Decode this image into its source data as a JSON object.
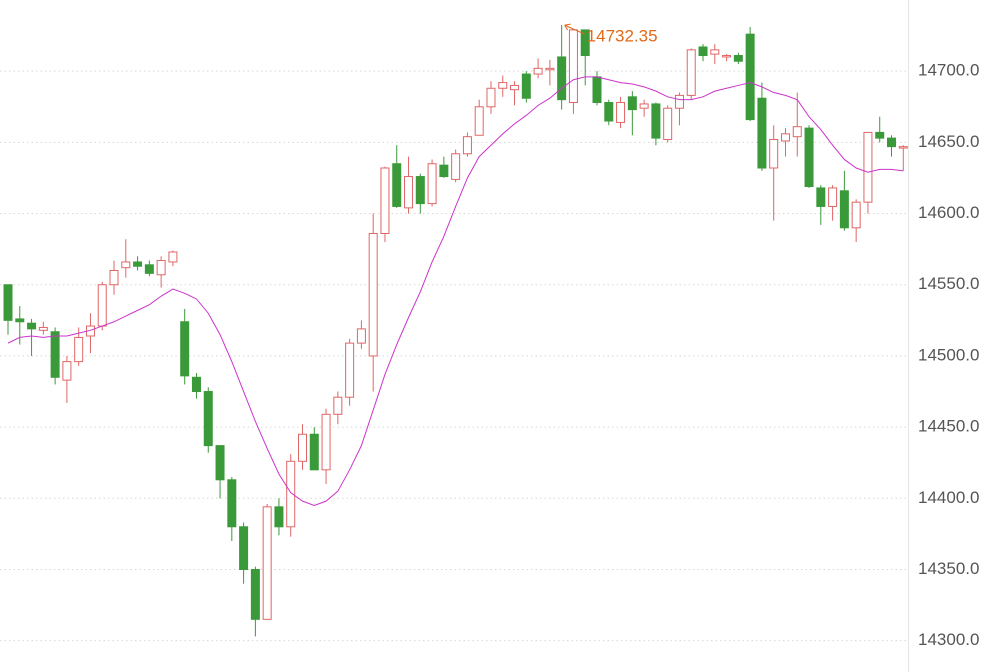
{
  "chart_data": {
    "type": "candlestick",
    "up_color": "#e06666",
    "down_color": "#3a9a3a",
    "open": [
      14550,
      14526,
      14523,
      14518,
      14517,
      14483,
      14496,
      14514,
      14521,
      14550,
      14562,
      14566,
      14564,
      14557,
      14566,
      14524,
      14485,
      14475,
      14437,
      14413,
      14380,
      14350,
      14315,
      14394,
      14380,
      14426,
      14445,
      14420,
      14459,
      14471,
      14509,
      14500,
      14586,
      14635,
      14604,
      14626,
      14607,
      14634,
      14624,
      14642,
      14655,
      14675,
      14688,
      14687,
      14698,
      14698,
      14701,
      14710,
      14678,
      14729,
      14696,
      14678,
      14664,
      14682,
      14674,
      14677,
      14652,
      14674,
      14683,
      14717,
      14712,
      14710,
      14711,
      14726,
      14681,
      14632,
      14651,
      14654,
      14660,
      14618,
      14605,
      14616,
      14590,
      14608,
      14657,
      14653,
      14646
    ],
    "high": [
      14550,
      14535,
      14526,
      14524,
      14520,
      14500,
      14520,
      14530,
      14552,
      14567,
      14582,
      14570,
      14567,
      14570,
      14574,
      14533,
      14488,
      14478,
      14437,
      14415,
      14383,
      14352,
      14396,
      14400,
      14431,
      14452,
      14450,
      14463,
      14475,
      14512,
      14525,
      14600,
      14633,
      14648,
      14640,
      14628,
      14638,
      14640,
      14645,
      14657,
      14680,
      14693,
      14697,
      14693,
      14700,
      14709,
      14708,
      14732.35,
      14728,
      14729,
      14700,
      14680,
      14682,
      14686,
      14680,
      14678,
      14676,
      14685,
      14716,
      14719,
      14719,
      14712,
      14713,
      14731,
      14692,
      14662,
      14660,
      14685,
      14662,
      14620,
      14620,
      14630,
      14610,
      14657,
      14668,
      14655,
      14648
    ],
    "low": [
      14515,
      14508,
      14500,
      14515,
      14480,
      14467,
      14493,
      14502,
      14518,
      14543,
      14555,
      14560,
      14556,
      14548,
      14563,
      14480,
      14470,
      14432,
      14400,
      14370,
      14340,
      14303,
      14315,
      14374,
      14373,
      14420,
      14420,
      14410,
      14452,
      14465,
      14505,
      14475,
      14580,
      14604,
      14600,
      14600,
      14605,
      14625,
      14622,
      14640,
      14655,
      14670,
      14682,
      14676,
      14678,
      14695,
      14690,
      14673,
      14670,
      14690,
      14676,
      14662,
      14660,
      14655,
      14668,
      14648,
      14650,
      14662,
      14680,
      14707,
      14705,
      14707,
      14705,
      14665,
      14630,
      14595,
      14640,
      14640,
      14618,
      14592,
      14595,
      14588,
      14580,
      14600,
      14650,
      14640,
      14630
    ],
    "close": [
      14525,
      14524,
      14519,
      14520,
      14485,
      14496,
      14513,
      14521,
      14550,
      14560,
      14566,
      14563,
      14558,
      14567,
      14573,
      14486,
      14475,
      14437,
      14413,
      14380,
      14350,
      14315,
      14394,
      14380,
      14426,
      14445,
      14420,
      14459,
      14471,
      14509,
      14519,
      14586,
      14632,
      14605,
      14626,
      14607,
      14635,
      14626,
      14642,
      14654,
      14675,
      14688,
      14692,
      14690,
      14681,
      14702,
      14702,
      14680,
      14729,
      14711,
      14678,
      14665,
      14678,
      14673,
      14677,
      14653,
      14674,
      14683,
      14715,
      14711,
      14715,
      14711,
      14707,
      14666,
      14632,
      14652,
      14656,
      14661,
      14619,
      14605,
      14618,
      14590,
      14608,
      14657,
      14653,
      14647,
      14647
    ],
    "ma": {
      "color": "#cc33cc",
      "values": [
        14509,
        14513,
        14514,
        14513,
        14514,
        14514,
        14516,
        14518,
        14521,
        14524,
        14528,
        14532,
        14536,
        14542,
        14547,
        14544,
        14540,
        14530,
        14515,
        14496,
        14475,
        14454,
        14435,
        14417,
        14404,
        14398,
        14395,
        14398,
        14405,
        14420,
        14437,
        14462,
        14487,
        14508,
        14527,
        14545,
        14566,
        14584,
        14605,
        14625,
        14640,
        14648,
        14656,
        14663,
        14669,
        14676,
        14681,
        14688,
        14694,
        14696,
        14696,
        14694,
        14692,
        14691,
        14689,
        14686,
        14682,
        14680,
        14680,
        14682,
        14686,
        14688,
        14690,
        14692,
        14689,
        14685,
        14683,
        14680,
        14668,
        14659,
        14648,
        14638,
        14632,
        14629,
        14631,
        14631,
        14630
      ]
    },
    "annotation_color": "#e0691a",
    "ylim": [
      14278,
      14750
    ],
    "yticks": [
      {
        "value": 14300,
        "label": "14300.0"
      },
      {
        "value": 14350,
        "label": "14350.0"
      },
      {
        "value": 14400,
        "label": "14400.0"
      },
      {
        "value": 14450,
        "label": "14450.0"
      },
      {
        "value": 14500,
        "label": "14500.0"
      },
      {
        "value": 14550,
        "label": "14550.0"
      },
      {
        "value": 14600,
        "label": "14600.0"
      },
      {
        "value": 14650,
        "label": "14650.0"
      },
      {
        "value": 14700,
        "label": "14700.0"
      }
    ],
    "grid": true
  }
}
